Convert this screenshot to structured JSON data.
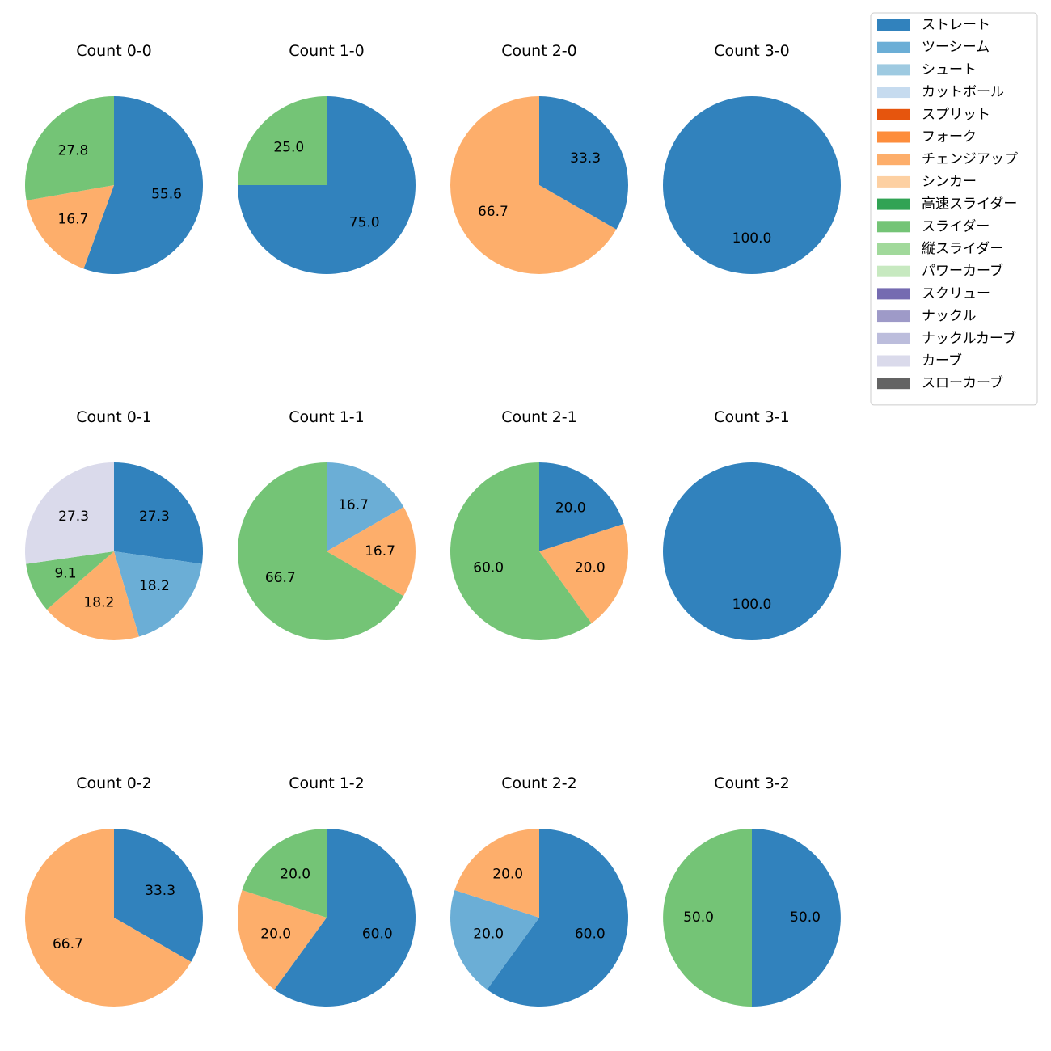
{
  "chart_data": {
    "type": "pie",
    "legend": {
      "placement": "top-right",
      "entries": [
        {
          "label": "ストレート",
          "color": "#3182bd"
        },
        {
          "label": "ツーシーム",
          "color": "#6baed6"
        },
        {
          "label": "シュート",
          "color": "#9ecae1"
        },
        {
          "label": "カットボール",
          "color": "#c6dbef"
        },
        {
          "label": "スプリット",
          "color": "#e6550d"
        },
        {
          "label": "フォーク",
          "color": "#fd8d3c"
        },
        {
          "label": "チェンジアップ",
          "color": "#fdae6b"
        },
        {
          "label": "シンカー",
          "color": "#fdd0a2"
        },
        {
          "label": "高速スライダー",
          "color": "#31a354"
        },
        {
          "label": "スライダー",
          "color": "#74c476"
        },
        {
          "label": "縦スライダー",
          "color": "#a1d99b"
        },
        {
          "label": "パワーカーブ",
          "color": "#c7e9c0"
        },
        {
          "label": "スクリュー",
          "color": "#756bb1"
        },
        {
          "label": "ナックル",
          "color": "#9e9ac8"
        },
        {
          "label": "ナックルカーブ",
          "color": "#bcbddc"
        },
        {
          "label": "カーブ",
          "color": "#dadaeb"
        },
        {
          "label": "スローカーブ",
          "color": "#636363"
        }
      ]
    },
    "pies": [
      {
        "title": "Count 0-0",
        "slices": [
          {
            "pitch": "ストレート",
            "value": 55.6,
            "label": "55.6"
          },
          {
            "pitch": "チェンジアップ",
            "value": 16.7,
            "label": "16.7"
          },
          {
            "pitch": "スライダー",
            "value": 27.8,
            "label": "27.8"
          }
        ]
      },
      {
        "title": "Count 1-0",
        "slices": [
          {
            "pitch": "ストレート",
            "value": 75.0,
            "label": "75.0"
          },
          {
            "pitch": "スライダー",
            "value": 25.0,
            "label": "25.0"
          }
        ]
      },
      {
        "title": "Count 2-0",
        "slices": [
          {
            "pitch": "ストレート",
            "value": 33.3,
            "label": "33.3"
          },
          {
            "pitch": "チェンジアップ",
            "value": 66.7,
            "label": "66.7"
          }
        ]
      },
      {
        "title": "Count 3-0",
        "slices": [
          {
            "pitch": "ストレート",
            "value": 100.0,
            "label": "100.0"
          }
        ]
      },
      {
        "title": "Count 0-1",
        "slices": [
          {
            "pitch": "ストレート",
            "value": 27.3,
            "label": "27.3"
          },
          {
            "pitch": "ツーシーム",
            "value": 18.2,
            "label": "18.2"
          },
          {
            "pitch": "チェンジアップ",
            "value": 18.2,
            "label": "18.2"
          },
          {
            "pitch": "スライダー",
            "value": 9.1,
            "label": "9.1"
          },
          {
            "pitch": "カーブ",
            "value": 27.3,
            "label": "27.3"
          }
        ]
      },
      {
        "title": "Count 1-1",
        "slices": [
          {
            "pitch": "ツーシーム",
            "value": 16.7,
            "label": "16.7"
          },
          {
            "pitch": "チェンジアップ",
            "value": 16.7,
            "label": "16.7"
          },
          {
            "pitch": "スライダー",
            "value": 66.7,
            "label": "66.7"
          }
        ]
      },
      {
        "title": "Count 2-1",
        "slices": [
          {
            "pitch": "ストレート",
            "value": 20.0,
            "label": "20.0"
          },
          {
            "pitch": "チェンジアップ",
            "value": 20.0,
            "label": "20.0"
          },
          {
            "pitch": "スライダー",
            "value": 60.0,
            "label": "60.0"
          }
        ]
      },
      {
        "title": "Count 3-1",
        "slices": [
          {
            "pitch": "ストレート",
            "value": 100.0,
            "label": "100.0"
          }
        ]
      },
      {
        "title": "Count 0-2",
        "slices": [
          {
            "pitch": "ストレート",
            "value": 33.3,
            "label": "33.3"
          },
          {
            "pitch": "チェンジアップ",
            "value": 66.7,
            "label": "66.7"
          }
        ]
      },
      {
        "title": "Count 1-2",
        "slices": [
          {
            "pitch": "ストレート",
            "value": 60.0,
            "label": "60.0"
          },
          {
            "pitch": "チェンジアップ",
            "value": 20.0,
            "label": "20.0"
          },
          {
            "pitch": "スライダー",
            "value": 20.0,
            "label": "20.0"
          }
        ]
      },
      {
        "title": "Count 2-2",
        "slices": [
          {
            "pitch": "ストレート",
            "value": 60.0,
            "label": "60.0"
          },
          {
            "pitch": "ツーシーム",
            "value": 20.0,
            "label": "20.0"
          },
          {
            "pitch": "チェンジアップ",
            "value": 20.0,
            "label": "20.0"
          }
        ]
      },
      {
        "title": "Count 3-2",
        "slices": [
          {
            "pitch": "ストレート",
            "value": 50.0,
            "label": "50.0"
          },
          {
            "pitch": "スライダー",
            "value": 50.0,
            "label": "50.0"
          }
        ]
      }
    ]
  }
}
